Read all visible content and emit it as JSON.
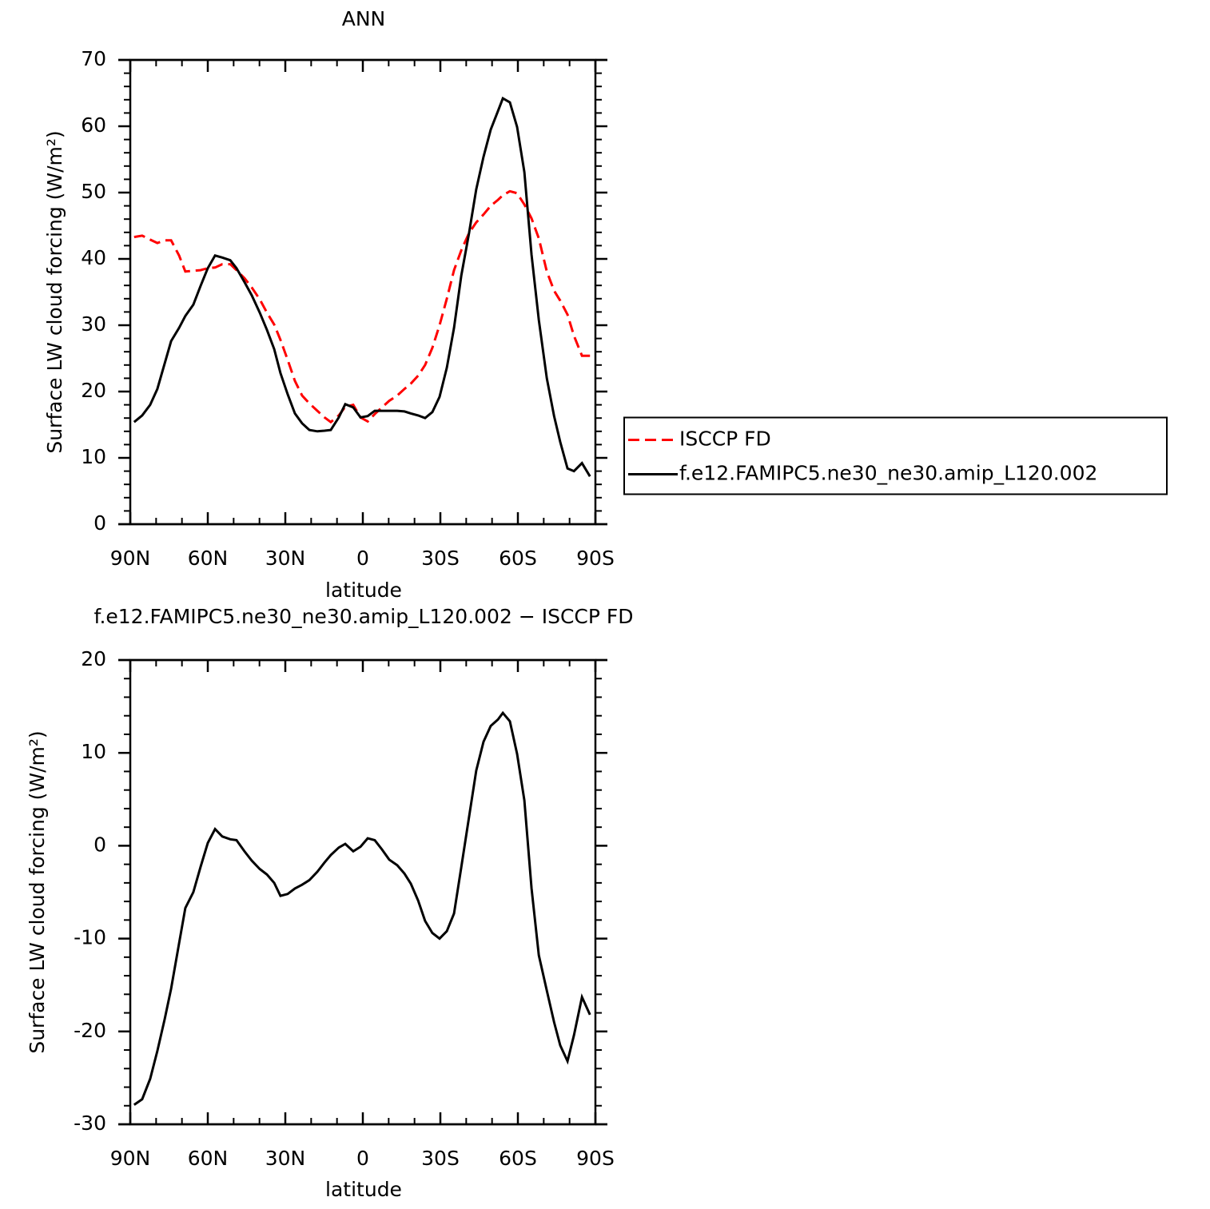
{
  "chart_data": [
    {
      "type": "line",
      "title": "ANN",
      "xlabel": "latitude",
      "ylabel": "Surface LW cloud forcing (W/m²)",
      "x": [
        88.5,
        85.4,
        82.3,
        79.5,
        76.7,
        74.2,
        71.1,
        68.7,
        65.6,
        62.8,
        60,
        57.2,
        54.4,
        51.3,
        48.9,
        45.8,
        43,
        39.9,
        37.1,
        34.3,
        31.9,
        29.1,
        26.3,
        23.5,
        20.7,
        17.6,
        14.8,
        12.4,
        9.3,
        6.8,
        3.7,
        0.9,
        -1.9,
        -4.6,
        -7.4,
        -10.2,
        -13.3,
        -16.1,
        -18.6,
        -21.4,
        -24.1,
        -26.9,
        -29.7,
        -32.5,
        -35.3,
        -38.1,
        -41.1,
        -43.9,
        -46.7,
        -49.5,
        -52.3,
        -54.2,
        -56.9,
        -59.7,
        -62.5,
        -65.3,
        -68.1,
        -71.2,
        -74,
        -76.4,
        -79.2,
        -81.7,
        -84.8,
        -87.9
      ],
      "series": [
        {
          "name": "ISCCP FD",
          "color": "#ff0000",
          "linestyle": "dashed",
          "values": [
            43.3,
            43.5,
            42.9,
            42.4,
            42.8,
            42.8,
            40.5,
            38.1,
            38.2,
            38.3,
            38.6,
            38.7,
            39.2,
            39.2,
            38.3,
            37.1,
            35.7,
            33.9,
            31.9,
            30.1,
            27.8,
            24.8,
            21.6,
            19.4,
            18.2,
            17.1,
            16.1,
            15.4,
            16.4,
            17.7,
            18,
            16.1,
            15.5,
            16.6,
            17.6,
            18.6,
            19.4,
            20.4,
            21.2,
            22.4,
            24,
            26.6,
            30,
            34,
            38.3,
            41.3,
            43.9,
            45.5,
            46.7,
            48,
            48.9,
            49.6,
            50.2,
            49.9,
            48.2,
            46.1,
            43.1,
            38.1,
            35.2,
            33.7,
            31.6,
            28.4,
            25.4,
            25.4
          ]
        },
        {
          "name": "f.e12.FAMIPC5.ne30_ne30.amip_L120.002",
          "color": "#000000",
          "linestyle": "solid",
          "values": [
            15.4,
            16.4,
            18,
            20.4,
            24.2,
            27.6,
            29.6,
            31.4,
            33.1,
            35.9,
            38.6,
            40.5,
            40.2,
            39.8,
            38.6,
            36.5,
            34.5,
            31.9,
            29.3,
            26.4,
            22.8,
            19.6,
            16.7,
            15.2,
            14.2,
            14,
            14.1,
            14.2,
            16.1,
            18.1,
            17.6,
            16.1,
            16.3,
            17.1,
            17.1,
            17.1,
            17.1,
            17,
            16.7,
            16.4,
            16,
            16.9,
            19.2,
            23.6,
            29.6,
            37.5,
            43.9,
            50.5,
            55.4,
            59.5,
            62.3,
            64.2,
            63.6,
            59.9,
            53.1,
            40.6,
            30.8,
            22,
            16.3,
            12.4,
            8.4,
            8,
            9.2,
            7.2
          ]
        }
      ],
      "xlim": [
        90,
        -90
      ],
      "xticks": [
        {
          "value": 90,
          "label": "90N"
        },
        {
          "value": 60,
          "label": "60N"
        },
        {
          "value": 30,
          "label": "30N"
        },
        0,
        {
          "value": -30,
          "label": "30S"
        },
        {
          "value": -60,
          "label": "60S"
        },
        {
          "value": -90,
          "label": "90S"
        }
      ],
      "ylim": [
        0,
        70
      ],
      "yticks": [
        0,
        10,
        20,
        30,
        40,
        50,
        60,
        70
      ],
      "legend": "right"
    },
    {
      "type": "line",
      "title": "f.e12.FAMIPC5.ne30_ne30.amip_L120.002 − ISCCP FD",
      "xlabel": "latitude",
      "ylabel": "Surface LW cloud forcing (W/m²)",
      "x": [
        88.5,
        85.4,
        82.3,
        79.5,
        76.7,
        74.2,
        71.1,
        68.7,
        65.6,
        62.8,
        60,
        57.2,
        54.4,
        51.3,
        48.9,
        45.8,
        43,
        39.9,
        37.1,
        34.3,
        31.9,
        29.1,
        26.3,
        23.5,
        20.7,
        17.6,
        14.8,
        12.4,
        9.3,
        6.8,
        3.7,
        0.9,
        -1.9,
        -4.6,
        -7.4,
        -10.2,
        -13.3,
        -16.1,
        -18.6,
        -21.4,
        -24.1,
        -26.9,
        -29.7,
        -32.5,
        -35.3,
        -38.1,
        -41.1,
        -43.9,
        -46.7,
        -49.5,
        -52.3,
        -54.2,
        -56.9,
        -59.7,
        -62.5,
        -65.3,
        -68.1,
        -71.2,
        -74,
        -76.4,
        -79.2,
        -81.7,
        -84.8,
        -87.9
      ],
      "series": [
        {
          "color": "#000000",
          "linestyle": "solid",
          "values": [
            -27.9,
            -27.3,
            -25.1,
            -22.1,
            -18.7,
            -15.4,
            -10.5,
            -6.7,
            -5,
            -2.3,
            0.3,
            1.8,
            1,
            0.7,
            0.6,
            -0.6,
            -1.6,
            -2.5,
            -3.1,
            -4,
            -5.4,
            -5.2,
            -4.6,
            -4.2,
            -3.7,
            -2.8,
            -1.8,
            -1,
            -0.2,
            0.2,
            -0.6,
            -0.1,
            0.8,
            0.6,
            -0.4,
            -1.5,
            -2.1,
            -3,
            -4.1,
            -5.9,
            -8.1,
            -9.4,
            -10,
            -9.2,
            -7.3,
            -2.3,
            3.1,
            8.1,
            11.2,
            12.9,
            13.6,
            14.3,
            13.4,
            9.9,
            4.9,
            -4.6,
            -11.8,
            -15.6,
            -19,
            -21.5,
            -23.2,
            -20.4,
            -16.3,
            -18.2
          ]
        }
      ],
      "xlim": [
        90,
        -90
      ],
      "xticks": [
        {
          "value": 90,
          "label": "90N"
        },
        {
          "value": 60,
          "label": "60N"
        },
        {
          "value": 30,
          "label": "30N"
        },
        0,
        {
          "value": -30,
          "label": "30S"
        },
        {
          "value": -60,
          "label": "60S"
        },
        {
          "value": -90,
          "label": "90S"
        }
      ],
      "ylim": [
        -30,
        20
      ],
      "yticks": [
        -30,
        -20,
        -10,
        0,
        10,
        20
      ]
    }
  ]
}
